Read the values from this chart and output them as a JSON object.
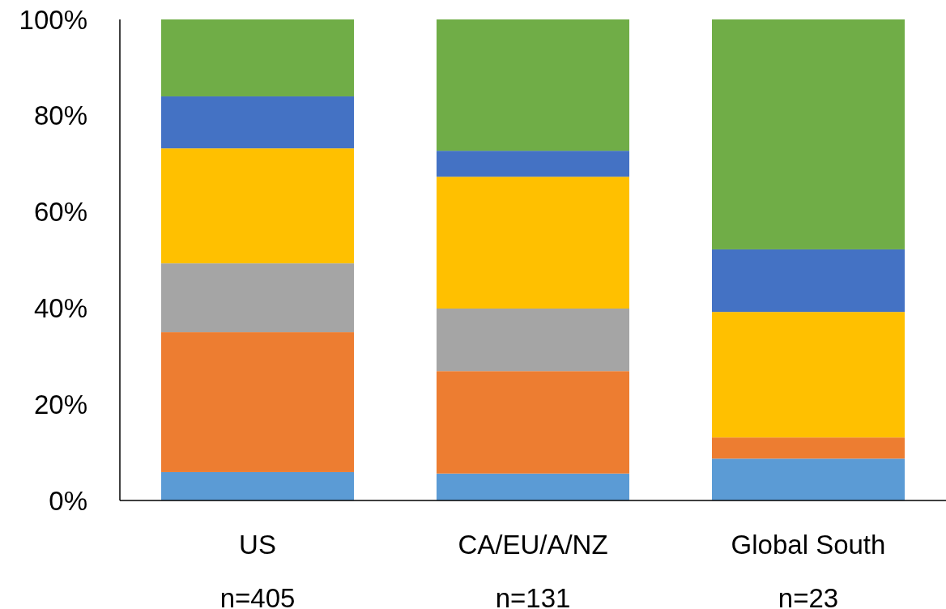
{
  "chart_data": {
    "type": "bar",
    "stacked": true,
    "categories": [
      "US\nn=405",
      "CA/EU/A/NZ\nn=131",
      "Global South\nn=23"
    ],
    "series": [
      {
        "color": "#5b9bd5",
        "values": [
          5.9,
          5.6,
          8.7
        ]
      },
      {
        "color": "#ed7d31",
        "values": [
          29.1,
          21.3,
          4.4
        ]
      },
      {
        "color": "#a5a5a5",
        "values": [
          14.3,
          13.0,
          0
        ]
      },
      {
        "color": "#ffc000",
        "values": [
          23.9,
          27.4,
          26.1
        ]
      },
      {
        "color": "#4472c4",
        "values": [
          10.8,
          5.4,
          13.0
        ]
      },
      {
        "color": "#70ad47",
        "values": [
          16.0,
          27.3,
          47.8
        ]
      }
    ],
    "ylim": [
      0,
      100
    ],
    "yticks": [
      {
        "value": 0,
        "label": "0%"
      },
      {
        "value": 20,
        "label": "20%"
      },
      {
        "value": 40,
        "label": "40%"
      },
      {
        "value": 60,
        "label": "60%"
      },
      {
        "value": 80,
        "label": "80%"
      },
      {
        "value": 100,
        "label": "100%"
      }
    ],
    "grid": false
  }
}
